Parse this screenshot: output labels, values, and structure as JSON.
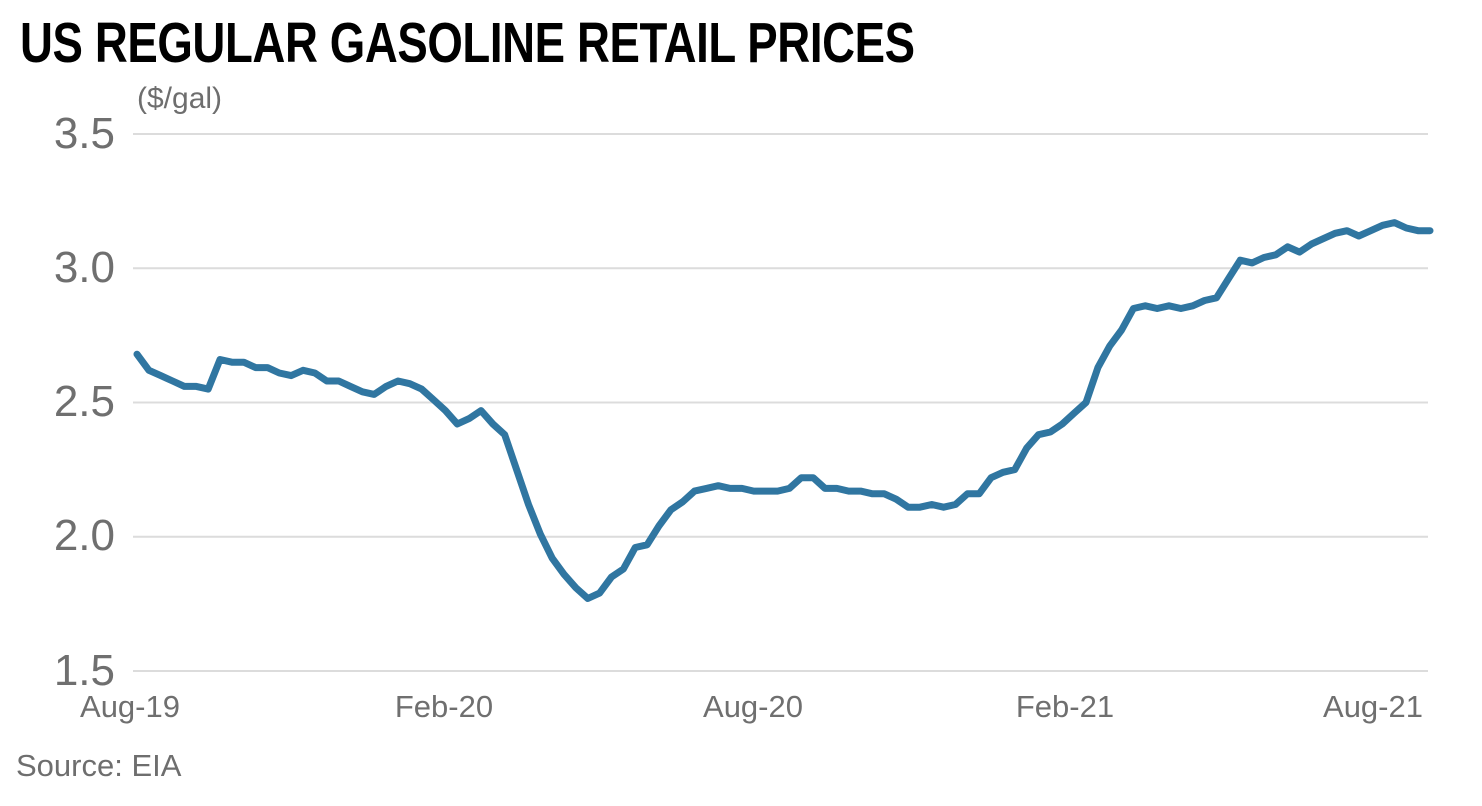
{
  "header": {
    "title": "US REGULAR GASOLINE RETAIL PRICES",
    "unit_label": "($/gal)"
  },
  "source": {
    "label": "Source: EIA"
  },
  "colors": {
    "line": "#3076a1",
    "grid": "#dcdcdc",
    "axis_text": "#6f6f6f",
    "title_text": "#000000",
    "background": "#ffffff"
  },
  "chart_data": {
    "type": "line",
    "title": "US REGULAR GASOLINE RETAIL PRICES",
    "unit": "($/gal)",
    "xlabel": "",
    "ylabel": "($/gal)",
    "source": "Source: EIA",
    "series_name": "US regular gasoline retail price, weekly",
    "ylim": [
      1.5,
      3.5
    ],
    "grid": true,
    "legend": "none",
    "line_color": "#3076a1",
    "y_ticks": [
      3.5,
      3.0,
      2.5,
      2.0,
      1.5
    ],
    "y_tick_labels": [
      "3.5",
      "3.0",
      "2.5",
      "2.0",
      "1.5"
    ],
    "x_tick_labels": [
      "Aug-19",
      "Feb-20",
      "Aug-20",
      "Feb-21",
      "Aug-21"
    ],
    "x": [
      "2019-08-05",
      "2019-08-12",
      "2019-08-19",
      "2019-08-26",
      "2019-09-02",
      "2019-09-09",
      "2019-09-16",
      "2019-09-23",
      "2019-09-30",
      "2019-10-07",
      "2019-10-14",
      "2019-10-21",
      "2019-10-28",
      "2019-11-04",
      "2019-11-11",
      "2019-11-18",
      "2019-11-25",
      "2019-12-02",
      "2019-12-09",
      "2019-12-16",
      "2019-12-23",
      "2019-12-30",
      "2020-01-06",
      "2020-01-13",
      "2020-01-20",
      "2020-01-27",
      "2020-02-03",
      "2020-02-10",
      "2020-02-17",
      "2020-02-24",
      "2020-03-02",
      "2020-03-09",
      "2020-03-16",
      "2020-03-23",
      "2020-03-30",
      "2020-04-06",
      "2020-04-13",
      "2020-04-20",
      "2020-04-27",
      "2020-05-04",
      "2020-05-11",
      "2020-05-18",
      "2020-05-25",
      "2020-06-01",
      "2020-06-08",
      "2020-06-15",
      "2020-06-22",
      "2020-06-29",
      "2020-07-06",
      "2020-07-13",
      "2020-07-20",
      "2020-07-27",
      "2020-08-03",
      "2020-08-10",
      "2020-08-17",
      "2020-08-24",
      "2020-08-31",
      "2020-09-07",
      "2020-09-14",
      "2020-09-21",
      "2020-09-28",
      "2020-10-05",
      "2020-10-12",
      "2020-10-19",
      "2020-10-26",
      "2020-11-02",
      "2020-11-09",
      "2020-11-16",
      "2020-11-23",
      "2020-11-30",
      "2020-12-07",
      "2020-12-14",
      "2020-12-21",
      "2020-12-28",
      "2021-01-04",
      "2021-01-11",
      "2021-01-18",
      "2021-01-25",
      "2021-02-01",
      "2021-02-08",
      "2021-02-15",
      "2021-02-22",
      "2021-03-01",
      "2021-03-08",
      "2021-03-15",
      "2021-03-22",
      "2021-03-29",
      "2021-04-05",
      "2021-04-12",
      "2021-04-19",
      "2021-04-26",
      "2021-05-03",
      "2021-05-10",
      "2021-05-17",
      "2021-05-24",
      "2021-05-31",
      "2021-06-07",
      "2021-06-14",
      "2021-06-21",
      "2021-06-28",
      "2021-07-05",
      "2021-07-12",
      "2021-07-19",
      "2021-07-26",
      "2021-08-02",
      "2021-08-09",
      "2021-08-16",
      "2021-08-23",
      "2021-08-30",
      "2021-09-06"
    ],
    "values": [
      2.68,
      2.62,
      2.6,
      2.58,
      2.56,
      2.56,
      2.55,
      2.66,
      2.65,
      2.65,
      2.63,
      2.63,
      2.61,
      2.6,
      2.62,
      2.61,
      2.58,
      2.58,
      2.56,
      2.54,
      2.53,
      2.56,
      2.58,
      2.57,
      2.55,
      2.51,
      2.47,
      2.42,
      2.44,
      2.47,
      2.42,
      2.38,
      2.25,
      2.12,
      2.01,
      1.92,
      1.86,
      1.81,
      1.77,
      1.79,
      1.85,
      1.88,
      1.96,
      1.97,
      2.04,
      2.1,
      2.13,
      2.17,
      2.18,
      2.19,
      2.18,
      2.18,
      2.17,
      2.17,
      2.17,
      2.18,
      2.22,
      2.22,
      2.18,
      2.18,
      2.17,
      2.17,
      2.16,
      2.16,
      2.14,
      2.11,
      2.11,
      2.12,
      2.11,
      2.12,
      2.16,
      2.16,
      2.22,
      2.24,
      2.25,
      2.33,
      2.38,
      2.39,
      2.42,
      2.46,
      2.5,
      2.63,
      2.71,
      2.77,
      2.85,
      2.86,
      2.85,
      2.86,
      2.85,
      2.86,
      2.88,
      2.89,
      2.96,
      3.03,
      3.02,
      3.04,
      3.05,
      3.08,
      3.06,
      3.09,
      3.11,
      3.13,
      3.14,
      3.12,
      3.14,
      3.16,
      3.17,
      3.15,
      3.14,
      3.14
    ]
  }
}
